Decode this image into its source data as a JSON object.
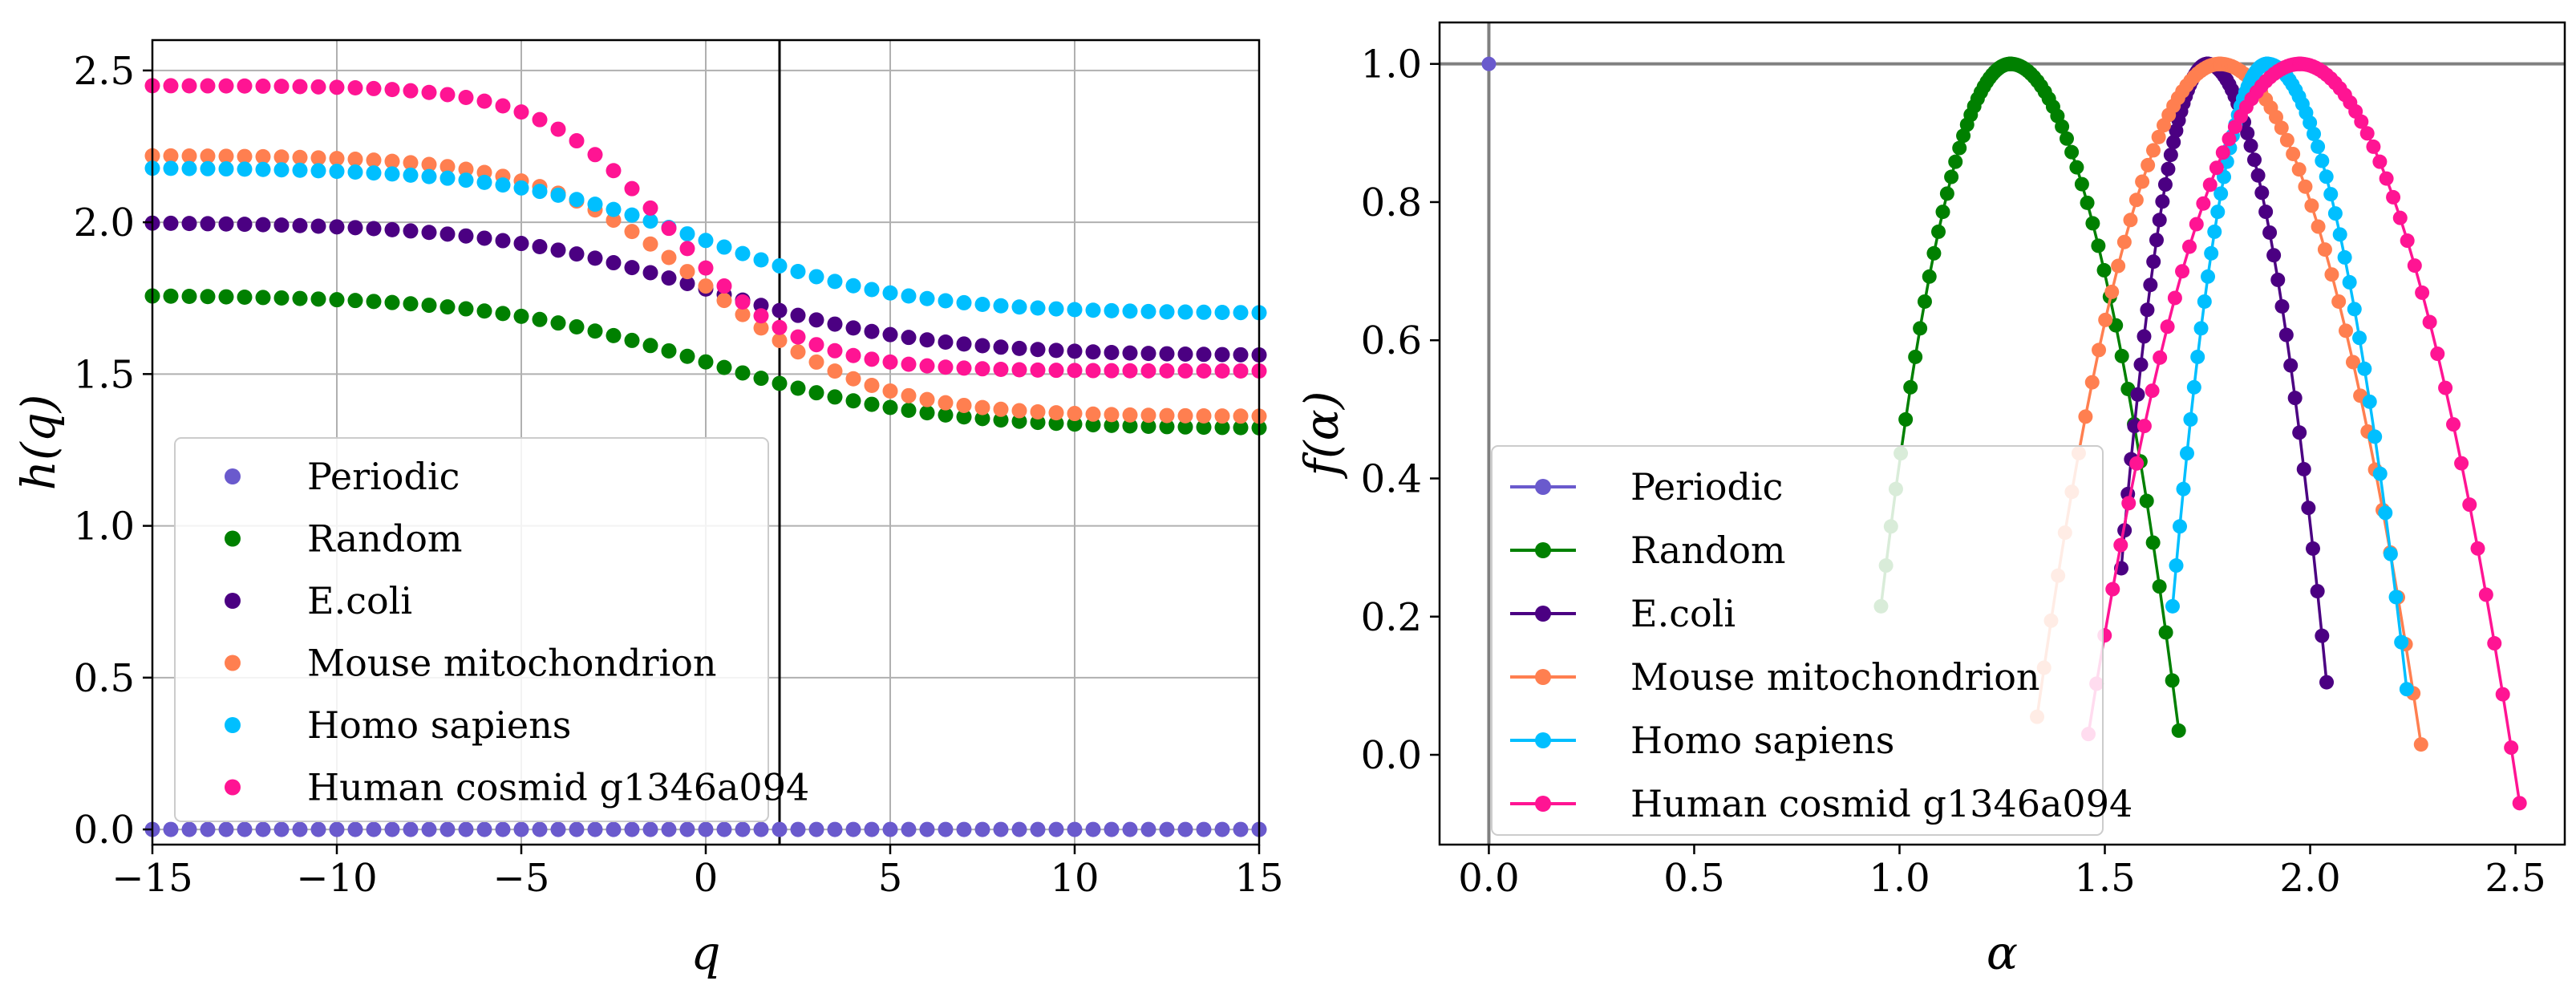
{
  "chart_data": [
    {
      "type": "scatter",
      "title": "",
      "xlabel": "q",
      "ylabel": "h(q)",
      "xlim": [
        -15,
        15
      ],
      "ylim": [
        -0.05,
        2.6
      ],
      "xticks": [
        -15,
        -10,
        -5,
        0,
        5,
        10,
        15
      ],
      "xtick_labels": [
        "−15",
        "−10",
        "−5",
        "0",
        "5",
        "10",
        "15"
      ],
      "yticks": [
        0.0,
        0.5,
        1.0,
        1.5,
        2.0,
        2.5
      ],
      "ytick_labels": [
        "0.0",
        "0.5",
        "1.0",
        "1.5",
        "2.0",
        "2.5"
      ],
      "grid": true,
      "vline_x": 2,
      "legend_loc": "lower-left",
      "q_range": [
        -15,
        15,
        61
      ],
      "series": [
        {
          "name": "Periodic",
          "color": "#6a5acd",
          "model": {
            "a": 0.0,
            "b": 0.0,
            "q0": 0,
            "s": 4
          }
        },
        {
          "name": "Random",
          "color": "#008000",
          "model": {
            "a": 1.54,
            "b": 0.22,
            "q0": 0,
            "s": 6
          }
        },
        {
          "name": "E.coli",
          "color": "#4b0082",
          "model": {
            "a": 1.78,
            "b": 0.22,
            "q0": 0,
            "s": 6
          }
        },
        {
          "name": "Mouse mitochondrion",
          "color": "#ff7f50",
          "model": {
            "a": 1.79,
            "b": 0.43,
            "q0": 0,
            "s": 4.5
          }
        },
        {
          "name": "Homo sapiens",
          "color": "#00bfff",
          "model": {
            "a": 1.94,
            "b": 0.24,
            "q0": 0,
            "s": 5.5
          }
        },
        {
          "name": "Human cosmid g1346a094",
          "color": "#ff1493",
          "model": {
            "a": 1.98,
            "b": 0.47,
            "q0": -1,
            "s": 3.5
          }
        }
      ]
    },
    {
      "type": "line",
      "title": "",
      "xlabel": "α",
      "ylabel": "f(α)",
      "xlim": [
        -0.12,
        2.62
      ],
      "ylim": [
        -0.13,
        1.06
      ],
      "xticks": [
        0.0,
        0.5,
        1.0,
        1.5,
        2.0,
        2.5
      ],
      "xtick_labels": [
        "0.0",
        "0.5",
        "1.0",
        "1.5",
        "2.0",
        "2.5"
      ],
      "yticks": [
        0.0,
        0.2,
        0.4,
        0.6,
        0.8,
        1.0
      ],
      "ytick_labels": [
        "0.0",
        "0.2",
        "0.4",
        "0.6",
        "0.8",
        "1.0"
      ],
      "grid": false,
      "hline_y": 1.0,
      "vline_x": 0.0,
      "legend_loc": "lower-left",
      "series": [
        {
          "name": "Periodic",
          "color": "#6a5acd",
          "points": [
            [
              0.0,
              1.0
            ]
          ]
        },
        {
          "name": "Random",
          "color": "#008000",
          "curve": {
            "left": [
              0.955,
              0.215
            ],
            "peak": [
              1.27,
              1.0
            ],
            "right": [
              1.68,
              0.035
            ]
          }
        },
        {
          "name": "E.coli",
          "color": "#4b0082",
          "curve": {
            "left": [
              1.54,
              0.27
            ],
            "peak": [
              1.75,
              1.0
            ],
            "right": [
              2.04,
              0.105
            ]
          }
        },
        {
          "name": "Mouse mitochondrion",
          "color": "#ff7f50",
          "curve": {
            "left": [
              1.335,
              0.055
            ],
            "peak": [
              1.78,
              1.0
            ],
            "right": [
              2.27,
              0.015
            ]
          }
        },
        {
          "name": "Homo sapiens",
          "color": "#00bfff",
          "curve": {
            "left": [
              1.665,
              0.215
            ],
            "peak": [
              1.895,
              1.0
            ],
            "right": [
              2.235,
              0.095
            ]
          }
        },
        {
          "name": "Human cosmid g1346a094",
          "color": "#ff1493",
          "curve": {
            "left": [
              1.46,
              0.03
            ],
            "peak": [
              1.975,
              1.0
            ],
            "right": [
              2.51,
              -0.07
            ]
          }
        }
      ]
    }
  ]
}
